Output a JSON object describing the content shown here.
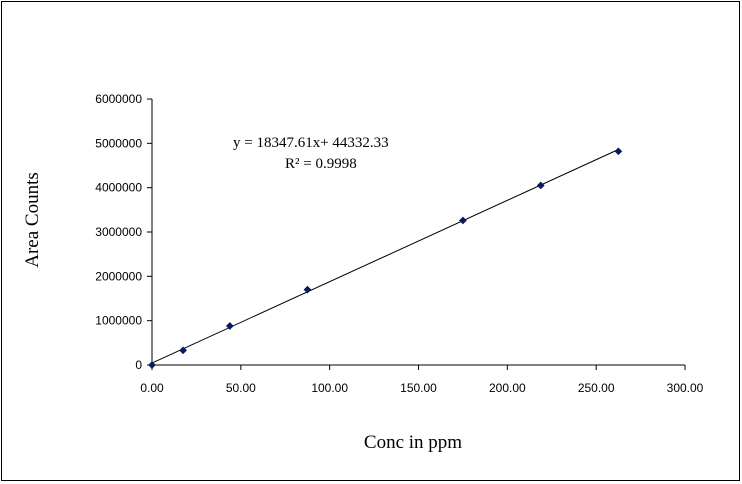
{
  "chart_data": {
    "type": "scatter",
    "title": "",
    "xlabel": "Conc in ppm",
    "ylabel": "Area Counts",
    "xlim": [
      0,
      300
    ],
    "ylim": [
      0,
      6000000
    ],
    "x_ticks": [
      "0.00",
      "50.00",
      "100.00",
      "150.00",
      "200.00",
      "250.00",
      "300.00"
    ],
    "y_ticks": [
      "0",
      "1000000",
      "2000000",
      "3000000",
      "4000000",
      "5000000",
      "6000000"
    ],
    "grid": false,
    "legend": "none",
    "series": [
      {
        "color": "#0a1a5c",
        "marker": "diamond",
        "x": [
          0,
          17.5,
          43.8,
          87.5,
          175.0,
          218.8,
          262.5
        ],
        "y": [
          0,
          330000,
          880000,
          1700000,
          3260000,
          4050000,
          4820000
        ]
      }
    ],
    "trendline": {
      "type": "linear",
      "slope": 18347.61,
      "intercept": 44332.33,
      "x_range": [
        0,
        262.5
      ],
      "color": "#000000",
      "equation_label": "y = 18347.61x+ 44332.33",
      "r2_label": "R² = 0.9998"
    }
  }
}
